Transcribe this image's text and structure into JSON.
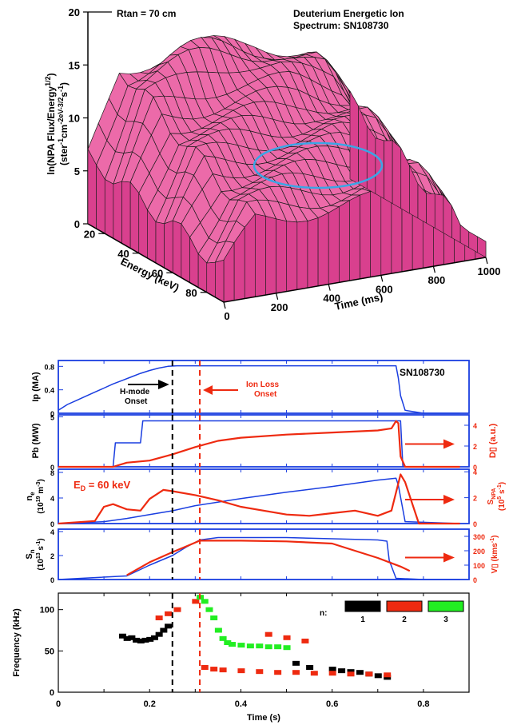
{
  "colors": {
    "surface_fill": "#ec6aa9",
    "surface_side": "#d9408e",
    "highlight_ellipse": "#3aa6e6",
    "ip_line": "#1a3ee0",
    "secondary_red": "#ee2a10",
    "frame_blue": "#1a3ee0",
    "mode_black": "#000000",
    "mode_red": "#ee2a10",
    "mode_green": "#22ee22"
  },
  "chart_data": [
    {
      "id": "surface3d",
      "type": "surface3d",
      "title_left": "Rtan = 70 cm",
      "title_right_line1": "Deuterium Energetic Ion",
      "title_right_line2": "Spectrum: SN108730",
      "zlabel_line1": "ln(NPA Flux/Energy",
      "zlabel_sup1": "1/2",
      "zlabel_line1_end": ")",
      "zlabel_line2": "(ster",
      "zlabel_line2_rest": "cm",
      "zlabel_line2_rest2": "-2eV",
      "zlabel_line2_rest3": "-3/2",
      "zlabel_line2_rest4": "s",
      "zlabel_line2_rest5": ")",
      "zlabel_sup2a": "-1",
      "zlabel_sup2b": "-1",
      "xlabel": "Time (ms)",
      "ylabel": "Energy (keV)",
      "z_ticks": [
        "0",
        "5",
        "10",
        "15",
        "20"
      ],
      "energy_ticks": [
        "20",
        "40",
        "60",
        "80"
      ],
      "time_ticks": [
        "0",
        "200",
        "400",
        "600",
        "800",
        "1000"
      ],
      "zlim": [
        0,
        20
      ],
      "energy_range": [
        10,
        90
      ],
      "time_range": [
        0,
        1000
      ]
    },
    {
      "id": "ip",
      "type": "line",
      "ylabel": "Ip (MA)",
      "y_ticks": [
        "0.8",
        "0.4",
        "0"
      ],
      "ylim": [
        0,
        0.9
      ],
      "xlim": [
        0,
        0.9
      ],
      "label_shot": "SN108730",
      "annot_hmode_1": "H-mode",
      "annot_hmode_2": "Onset",
      "annot_ionloss_1": "Ion Loss",
      "annot_ionloss_2": "Onset",
      "series": [
        {
          "name": "Ip",
          "color": "#1a3ee0",
          "x": [
            0.0,
            0.02,
            0.04,
            0.06,
            0.08,
            0.1,
            0.12,
            0.14,
            0.16,
            0.18,
            0.2,
            0.22,
            0.24,
            0.26,
            0.3,
            0.4,
            0.5,
            0.6,
            0.7,
            0.74,
            0.745,
            0.75,
            0.76,
            0.8,
            0.88
          ],
          "y": [
            0.05,
            0.15,
            0.22,
            0.29,
            0.36,
            0.43,
            0.5,
            0.56,
            0.62,
            0.68,
            0.73,
            0.77,
            0.8,
            0.81,
            0.81,
            0.81,
            0.81,
            0.81,
            0.81,
            0.81,
            0.6,
            0.3,
            0.05,
            0.0,
            0.0
          ]
        }
      ]
    },
    {
      "id": "pb",
      "type": "line",
      "ylabel": "Pb (MW)",
      "y_ticks": [
        "5",
        "0"
      ],
      "ylim": [
        0,
        5.2
      ],
      "xlim": [
        0,
        0.9
      ],
      "y2label": "D▯ (a.u.)",
      "y2_ticks": [
        "4",
        "2",
        "0"
      ],
      "y2lim": [
        0,
        5
      ],
      "series": [
        {
          "name": "Pb",
          "color": "#1a3ee0",
          "x": [
            0.0,
            0.12,
            0.125,
            0.18,
            0.185,
            0.75,
            0.755,
            0.88
          ],
          "y": [
            0.0,
            0.0,
            2.4,
            2.4,
            4.6,
            4.6,
            0.0,
            0.0
          ]
        },
        {
          "name": "Dalpha",
          "color": "#ee2a10",
          "x": [
            0.0,
            0.12,
            0.15,
            0.2,
            0.25,
            0.3,
            0.35,
            0.4,
            0.5,
            0.6,
            0.7,
            0.73,
            0.74,
            0.745,
            0.75,
            0.76,
            0.88
          ],
          "y": [
            0.0,
            0.0,
            0.4,
            0.6,
            1.2,
            1.9,
            2.5,
            2.8,
            3.1,
            3.3,
            3.5,
            3.7,
            4.4,
            4.2,
            1.0,
            0.0,
            0.0
          ]
        }
      ]
    },
    {
      "id": "ne",
      "type": "line",
      "ylabel": "n",
      "ylabel_sub": "e",
      "ylabel2": "(10",
      "ylabel2_sup": "19",
      "ylabel2_rest": " m",
      "ylabel2_sup2": "-3",
      "ylabel2_end": ")",
      "y_ticks": [
        "8",
        "4",
        "0"
      ],
      "ylim": [
        0,
        8.5
      ],
      "xlim": [
        0,
        0.9
      ],
      "y2label": "S",
      "y2label_sub": "NPA",
      "y2label_2": "(10",
      "y2label_2_sup": "5",
      "y2label_2_rest": " s",
      "y2label_2_sup2": "-1",
      "y2label_2_end": ")",
      "y2_ticks": [
        "4",
        "2",
        "0"
      ],
      "y2lim": [
        0,
        4.2
      ],
      "annot_energy": "E",
      "annot_energy_sub": "D",
      "annot_energy_rest": " = 60 keV",
      "series": [
        {
          "name": "ne",
          "color": "#1a3ee0",
          "x": [
            0.0,
            0.1,
            0.15,
            0.2,
            0.25,
            0.3,
            0.4,
            0.5,
            0.6,
            0.7,
            0.74,
            0.745,
            0.76,
            0.88
          ],
          "y": [
            0.0,
            0.3,
            0.8,
            1.4,
            2.0,
            2.8,
            3.9,
            4.9,
            5.8,
            6.8,
            7.1,
            6.0,
            0.3,
            0.0
          ]
        },
        {
          "name": "SNPA",
          "color": "#ee2a10",
          "x": [
            0.0,
            0.08,
            0.1,
            0.12,
            0.15,
            0.18,
            0.2,
            0.23,
            0.25,
            0.3,
            0.35,
            0.4,
            0.5,
            0.55,
            0.6,
            0.65,
            0.7,
            0.73,
            0.75,
            0.76,
            0.79,
            0.88
          ],
          "y": [
            0.0,
            0.2,
            1.3,
            1.5,
            1.1,
            1.0,
            1.9,
            2.6,
            2.5,
            2.2,
            1.8,
            1.3,
            0.7,
            0.6,
            0.8,
            1.0,
            0.6,
            1.0,
            3.8,
            3.2,
            0.0,
            0.0
          ]
        }
      ]
    },
    {
      "id": "sn",
      "type": "line",
      "ylabel": "S",
      "ylabel_sub": "n",
      "ylabel2": "(10",
      "ylabel2_sup": "13",
      "ylabel2_rest": " s",
      "ylabel2_sup2": "-1",
      "ylabel2_end": ")",
      "y_ticks": [
        "4",
        "2",
        "0"
      ],
      "ylim": [
        0,
        4.2
      ],
      "xlim": [
        0,
        0.9
      ],
      "y2label": "V▯ (kms",
      "y2label_sup": "-1",
      "y2label_end": ")",
      "y2_ticks": [
        "300",
        "200",
        "100",
        "0"
      ],
      "y2lim": [
        0,
        350
      ],
      "series": [
        {
          "name": "Sn",
          "color": "#1a3ee0",
          "x": [
            0.0,
            0.15,
            0.2,
            0.25,
            0.28,
            0.31,
            0.35,
            0.4,
            0.5,
            0.6,
            0.7,
            0.72,
            0.725,
            0.74,
            0.8,
            0.88
          ],
          "y": [
            0.0,
            0.3,
            1.2,
            2.0,
            2.7,
            3.3,
            3.5,
            3.5,
            3.5,
            3.4,
            3.3,
            3.2,
            1.6,
            0.1,
            0.0,
            0.0
          ]
        },
        {
          "name": "Vphi",
          "color": "#ee2a10",
          "x": [
            0.15,
            0.2,
            0.25,
            0.28,
            0.31,
            0.35,
            0.4,
            0.5,
            0.6,
            0.65,
            0.7,
            0.75,
            0.77
          ],
          "y": [
            30,
            120,
            190,
            230,
            270,
            270,
            270,
            265,
            250,
            200,
            150,
            90,
            60
          ]
        }
      ]
    },
    {
      "id": "freq",
      "type": "scatter",
      "xlabel": "Time (s)",
      "ylabel": "Frequency (kHz)",
      "x_ticks": [
        "0",
        "0.2",
        "0.4",
        "0.6",
        "0.8"
      ],
      "y_ticks": [
        "100",
        "50",
        "0"
      ],
      "xlim": [
        0,
        0.9
      ],
      "ylim": [
        0,
        120
      ],
      "legend_title": "n:",
      "legend_entries": [
        "1",
        "2",
        "3"
      ],
      "vlines": [
        {
          "x": 0.25,
          "color": "#000000"
        },
        {
          "x": 0.31,
          "color": "#ee2a10"
        }
      ],
      "series": [
        {
          "name": "1",
          "color": "#000000",
          "x": [
            0.14,
            0.15,
            0.16,
            0.17,
            0.18,
            0.19,
            0.2,
            0.21,
            0.22,
            0.23,
            0.24,
            0.52,
            0.55,
            0.6,
            0.62,
            0.64,
            0.66,
            0.68,
            0.7,
            0.72
          ],
          "y": [
            68,
            65,
            66,
            63,
            62,
            63,
            64,
            66,
            70,
            75,
            80,
            35,
            30,
            28,
            26,
            25,
            24,
            22,
            20,
            18
          ]
        },
        {
          "name": "2",
          "color": "#ee2a10",
          "x": [
            0.22,
            0.24,
            0.26,
            0.3,
            0.32,
            0.34,
            0.36,
            0.4,
            0.44,
            0.48,
            0.52,
            0.56,
            0.6,
            0.64,
            0.68,
            0.72,
            0.46,
            0.5,
            0.54
          ],
          "y": [
            90,
            95,
            100,
            110,
            30,
            28,
            27,
            26,
            25,
            24,
            24,
            23,
            23,
            22,
            22,
            21,
            70,
            66,
            62
          ]
        },
        {
          "name": "3",
          "color": "#22ee22",
          "x": [
            0.31,
            0.32,
            0.33,
            0.34,
            0.35,
            0.36,
            0.37,
            0.38,
            0.4,
            0.42,
            0.44,
            0.46,
            0.48,
            0.5
          ],
          "y": [
            115,
            110,
            100,
            90,
            75,
            65,
            60,
            58,
            57,
            56,
            56,
            55,
            55,
            54
          ]
        }
      ]
    }
  ]
}
